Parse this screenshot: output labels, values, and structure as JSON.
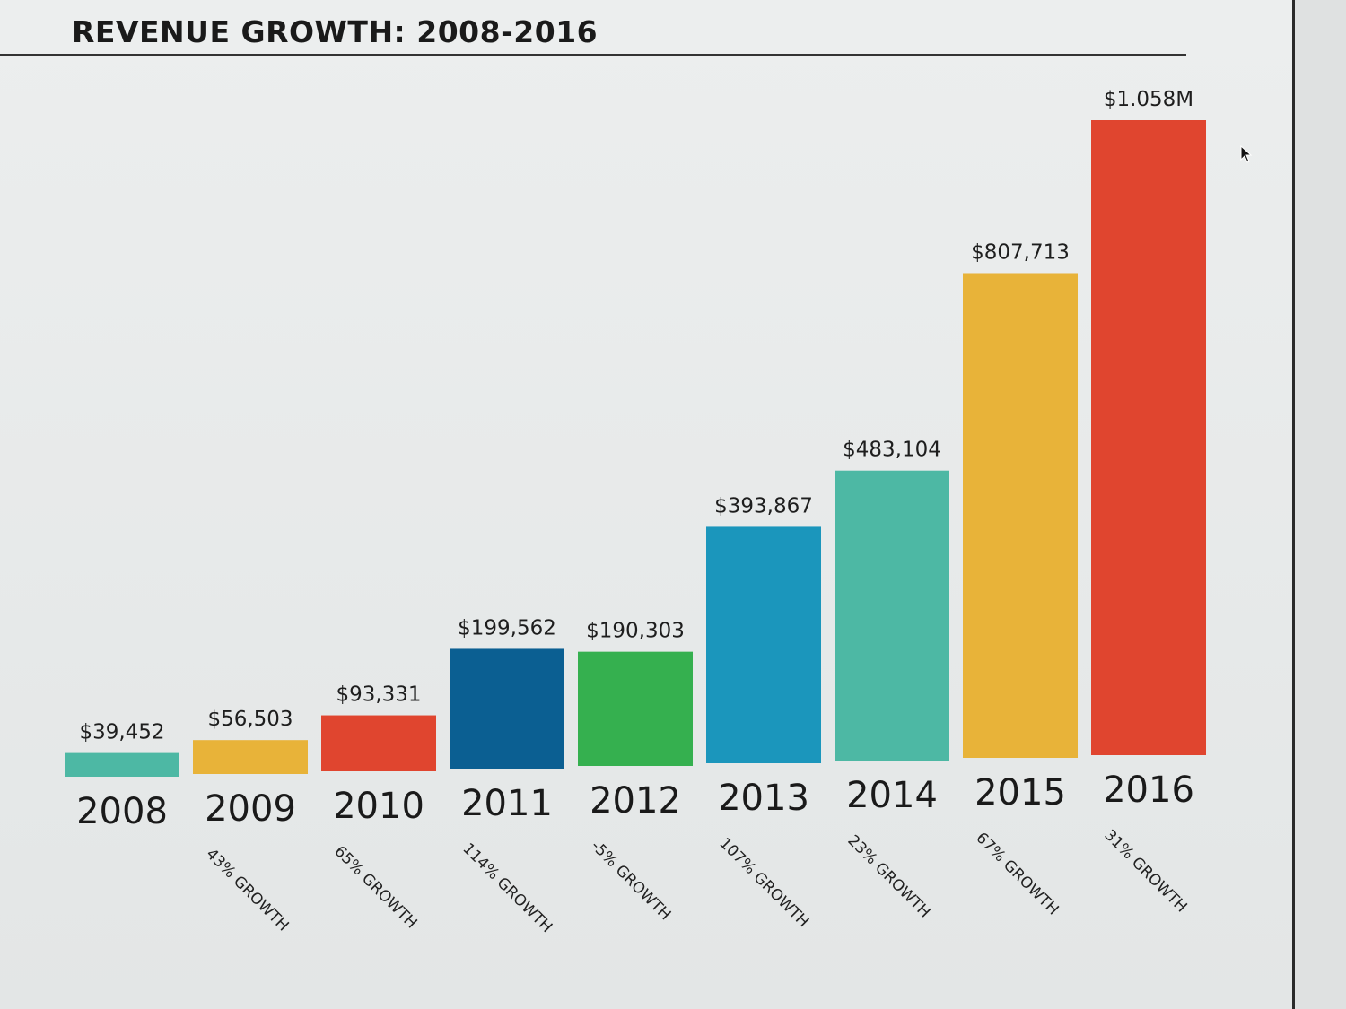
{
  "chart_data": {
    "type": "bar",
    "title": "REVENUE GROWTH: 2008-2016",
    "xlabel": "",
    "ylabel": "",
    "ylim": [
      0,
      1058000
    ],
    "grid": false,
    "legend": "none",
    "categories": [
      "2008",
      "2009",
      "2010",
      "2011",
      "2012",
      "2013",
      "2014",
      "2015",
      "2016"
    ],
    "values": [
      39452,
      56503,
      93331,
      199562,
      190303,
      393867,
      483104,
      807713,
      1058000
    ],
    "value_labels": [
      "$39,452",
      "$56,503",
      "$93,331",
      "$199,562",
      "$190,303",
      "$393,867",
      "$483,104",
      "$807,713",
      "$1.058M"
    ],
    "growth_labels": [
      "",
      "43% GROWTH",
      "65% GROWTH",
      "114% GROWTH",
      "-5% GROWTH",
      "107% GROWTH",
      "23% GROWTH",
      "67% GROWTH",
      "31% GROWTH"
    ],
    "colors": [
      "#4db8a4",
      "#e8b339",
      "#e0452f",
      "#0b5f92",
      "#35b04f",
      "#1b96bc",
      "#4db8a4",
      "#e8b339",
      "#e0452f"
    ]
  }
}
